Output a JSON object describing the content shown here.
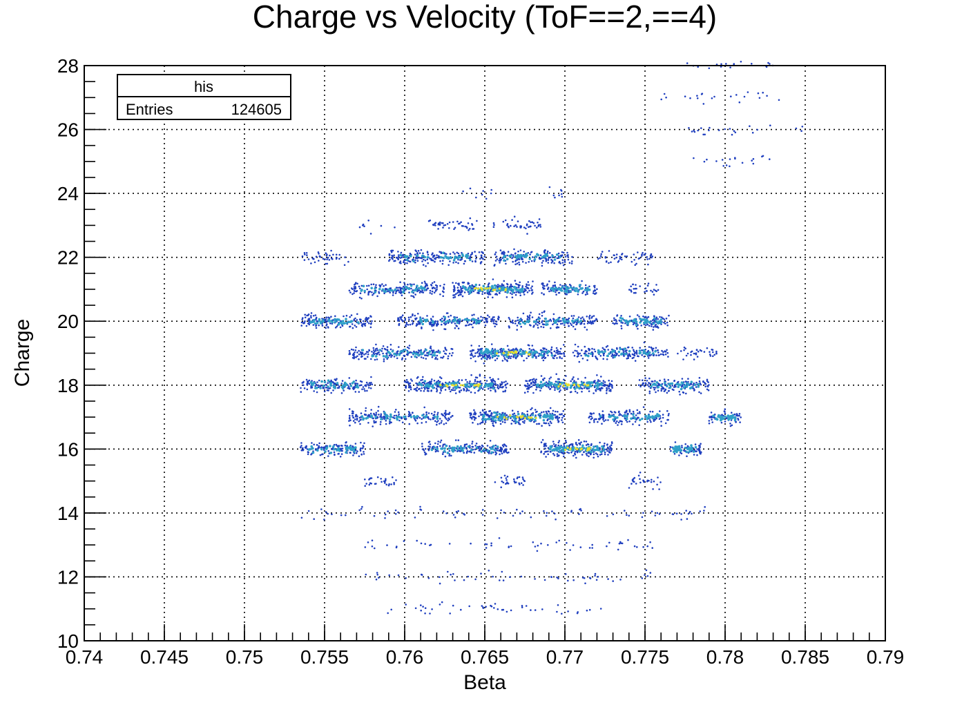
{
  "chart_data": {
    "type": "scatter",
    "title": "Charge vs Velocity (ToF==2,==4)",
    "xlabel": "Beta",
    "ylabel": "Charge",
    "xlim": [
      0.74,
      0.79
    ],
    "ylim": [
      10,
      28
    ],
    "xticks": [
      "0.74",
      "0.745",
      "0.75",
      "0.755",
      "0.76",
      "0.765",
      "0.77",
      "0.775",
      "0.78",
      "0.785",
      "0.79"
    ],
    "yticks": [
      "10",
      "12",
      "14",
      "16",
      "18",
      "20",
      "22",
      "24",
      "26",
      "28"
    ],
    "grid": true,
    "stats_box": {
      "name": "his",
      "entries_label": "Entries",
      "entries_value": "124605",
      "position": "top-left"
    },
    "colors": {
      "points": "#1f3fbf",
      "core": "#2fa0c8",
      "hot": "#e8e030"
    },
    "clusters": [
      {
        "charge": 11,
        "beta_min": 0.7575,
        "beta_max": 0.7725,
        "density": "low"
      },
      {
        "charge": 12,
        "beta_min": 0.7575,
        "beta_max": 0.7755,
        "density": "low"
      },
      {
        "charge": 13,
        "beta_min": 0.7575,
        "beta_max": 0.7755,
        "density": "low"
      },
      {
        "charge": 14,
        "beta_min": 0.7535,
        "beta_max": 0.7795,
        "density": "low"
      },
      {
        "charge": 15,
        "beta_min": 0.7575,
        "beta_max": 0.7595,
        "density": "medium"
      },
      {
        "charge": 15,
        "beta_min": 0.7655,
        "beta_max": 0.7675,
        "density": "medium"
      },
      {
        "charge": 15,
        "beta_min": 0.774,
        "beta_max": 0.776,
        "density": "medium"
      },
      {
        "charge": 16,
        "beta_min": 0.7535,
        "beta_max": 0.7575,
        "density": "high"
      },
      {
        "charge": 16,
        "beta_min": 0.761,
        "beta_max": 0.7665,
        "density": "high"
      },
      {
        "charge": 16,
        "beta_min": 0.7685,
        "beta_max": 0.773,
        "density": "very-high"
      },
      {
        "charge": 16,
        "beta_min": 0.7765,
        "beta_max": 0.7785,
        "density": "high"
      },
      {
        "charge": 17,
        "beta_min": 0.7565,
        "beta_max": 0.763,
        "density": "high"
      },
      {
        "charge": 17,
        "beta_min": 0.764,
        "beta_max": 0.77,
        "density": "very-high"
      },
      {
        "charge": 17,
        "beta_min": 0.7715,
        "beta_max": 0.7765,
        "density": "high"
      },
      {
        "charge": 17,
        "beta_min": 0.779,
        "beta_max": 0.781,
        "density": "high"
      },
      {
        "charge": 18,
        "beta_min": 0.7535,
        "beta_max": 0.758,
        "density": "high"
      },
      {
        "charge": 18,
        "beta_min": 0.76,
        "beta_max": 0.7665,
        "density": "very-high"
      },
      {
        "charge": 18,
        "beta_min": 0.7675,
        "beta_max": 0.773,
        "density": "very-high"
      },
      {
        "charge": 18,
        "beta_min": 0.7745,
        "beta_max": 0.779,
        "density": "high"
      },
      {
        "charge": 19,
        "beta_min": 0.7565,
        "beta_max": 0.763,
        "density": "high"
      },
      {
        "charge": 19,
        "beta_min": 0.764,
        "beta_max": 0.77,
        "density": "very-high"
      },
      {
        "charge": 19,
        "beta_min": 0.7705,
        "beta_max": 0.7765,
        "density": "high"
      },
      {
        "charge": 19,
        "beta_min": 0.777,
        "beta_max": 0.7795,
        "density": "medium"
      },
      {
        "charge": 20,
        "beta_min": 0.7535,
        "beta_max": 0.758,
        "density": "high"
      },
      {
        "charge": 20,
        "beta_min": 0.7595,
        "beta_max": 0.766,
        "density": "high"
      },
      {
        "charge": 20,
        "beta_min": 0.7665,
        "beta_max": 0.772,
        "density": "high"
      },
      {
        "charge": 20,
        "beta_min": 0.773,
        "beta_max": 0.7765,
        "density": "high"
      },
      {
        "charge": 21,
        "beta_min": 0.7565,
        "beta_max": 0.7625,
        "density": "high"
      },
      {
        "charge": 21,
        "beta_min": 0.763,
        "beta_max": 0.768,
        "density": "very-high"
      },
      {
        "charge": 21,
        "beta_min": 0.7685,
        "beta_max": 0.772,
        "density": "high"
      },
      {
        "charge": 21,
        "beta_min": 0.774,
        "beta_max": 0.776,
        "density": "medium"
      },
      {
        "charge": 22,
        "beta_min": 0.7535,
        "beta_max": 0.7565,
        "density": "medium"
      },
      {
        "charge": 22,
        "beta_min": 0.759,
        "beta_max": 0.765,
        "density": "high"
      },
      {
        "charge": 22,
        "beta_min": 0.7655,
        "beta_max": 0.7705,
        "density": "high"
      },
      {
        "charge": 22,
        "beta_min": 0.772,
        "beta_max": 0.7755,
        "density": "medium"
      },
      {
        "charge": 23,
        "beta_min": 0.757,
        "beta_max": 0.7595,
        "density": "low"
      },
      {
        "charge": 23,
        "beta_min": 0.7615,
        "beta_max": 0.7645,
        "density": "medium"
      },
      {
        "charge": 23,
        "beta_min": 0.7655,
        "beta_max": 0.7685,
        "density": "medium"
      },
      {
        "charge": 24,
        "beta_min": 0.7635,
        "beta_max": 0.7655,
        "density": "low"
      },
      {
        "charge": 24,
        "beta_min": 0.769,
        "beta_max": 0.77,
        "density": "low"
      },
      {
        "charge": 25,
        "beta_min": 0.7775,
        "beta_max": 0.7835,
        "density": "low"
      },
      {
        "charge": 26,
        "beta_min": 0.7775,
        "beta_max": 0.785,
        "density": "low"
      },
      {
        "charge": 27,
        "beta_min": 0.776,
        "beta_max": 0.7835,
        "density": "low"
      },
      {
        "charge": 28,
        "beta_min": 0.7775,
        "beta_max": 0.7835,
        "density": "low"
      }
    ]
  }
}
